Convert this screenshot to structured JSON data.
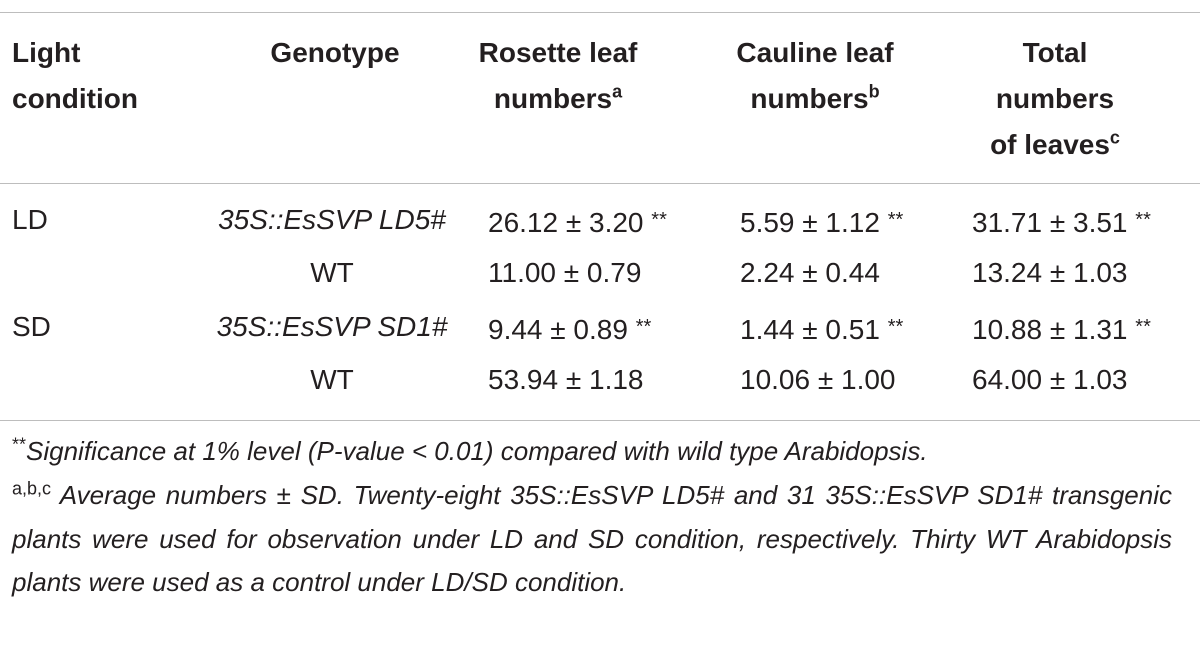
{
  "table": {
    "header": [
      {
        "text": "Light condition"
      },
      {
        "text": "Genotype"
      },
      {
        "text": "Rosette leaf numbers",
        "sup": "a"
      },
      {
        "text": "Cauline leaf numbers",
        "sup": "b"
      },
      {
        "text": "Total numbers of leaves",
        "sup": "c"
      }
    ],
    "rows": [
      [
        {
          "text": "LD"
        },
        {
          "text": "35S::EsSVP LD5#",
          "italic": true
        },
        {
          "text": "26.12 ± 3.20",
          "mark": "**"
        },
        {
          "text": "5.59 ± 1.12",
          "mark": "**"
        },
        {
          "text": "31.71 ± 3.51",
          "mark": "**"
        }
      ],
      [
        {
          "text": ""
        },
        {
          "text": "WT"
        },
        {
          "text": "11.00 ± 0.79"
        },
        {
          "text": "2.24 ± 0.44"
        },
        {
          "text": "13.24 ± 1.03"
        }
      ],
      [
        {
          "text": "SD"
        },
        {
          "text": "35S::EsSVP SD1#",
          "italic": true
        },
        {
          "text": "9.44 ± 0.89",
          "mark": "**"
        },
        {
          "text": "1.44 ± 0.51",
          "mark": "**"
        },
        {
          "text": "10.88 ± 1.31",
          "mark": "**"
        }
      ],
      [
        {
          "text": ""
        },
        {
          "text": "WT"
        },
        {
          "text": "53.94 ± 1.18"
        },
        {
          "text": "10.06 ± 1.00"
        },
        {
          "text": "64.00 ± 1.03"
        }
      ]
    ],
    "footnotes": [
      {
        "sup": "**",
        "text": "Significance at 1% level (P-value < 0.01) compared with wild type Arabidopsis."
      },
      {
        "sup": "a,b,c",
        "text": " Average numbers ± SD. Twenty-eight 35S::EsSVP LD5# and 31 35S::EsSVP SD1# transgenic plants were used for observation under LD and SD condition, respectively. Thirty WT Arabidopsis plants were used as a control under LD/SD condition."
      }
    ]
  }
}
